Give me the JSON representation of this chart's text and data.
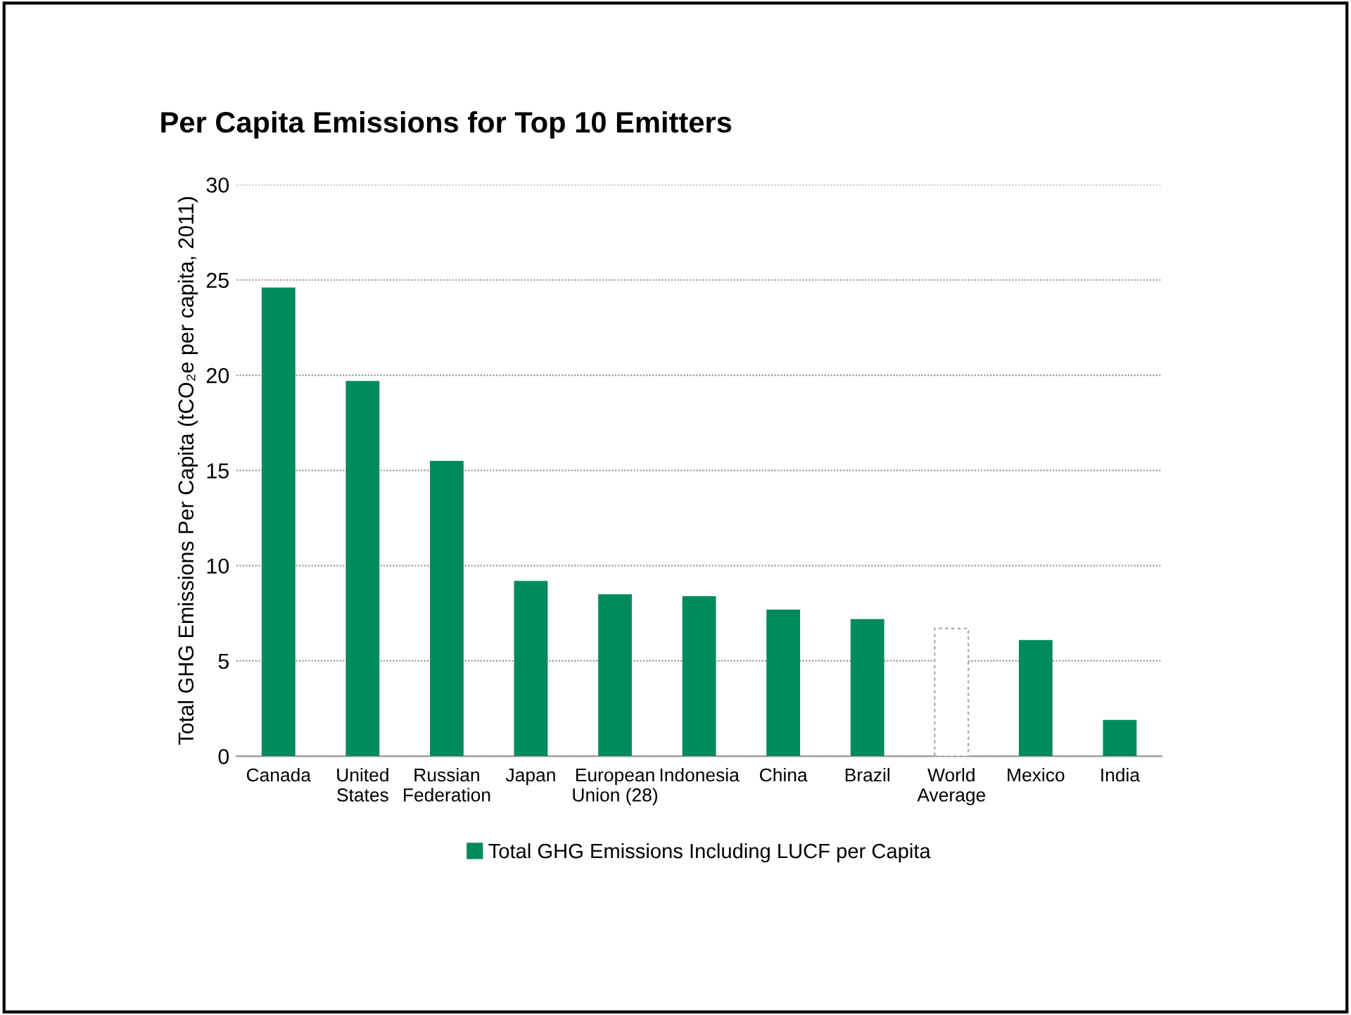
{
  "chart_data": {
    "type": "bar",
    "title": "Per Capita Emissions for Top 10 Emitters",
    "ylabel": "Total GHG Emissions Per Capita (tCO₂e per capita, 2011)",
    "categories": [
      "Canada",
      "United\nStates",
      "Russian\nFederation",
      "Japan",
      "European\nUnion (28)",
      "Indonesia",
      "China",
      "Brazil",
      "World\nAverage",
      "Mexico",
      "India"
    ],
    "series": [
      {
        "name": "Total GHG Emissions Including LUCF per Capita",
        "color": "#008a5e",
        "values": [
          24.6,
          19.7,
          15.5,
          9.2,
          8.5,
          8.4,
          7.7,
          7.2,
          6.7,
          6.1,
          1.9
        ],
        "colors": [
          "#008a5e",
          "#008a5e",
          "#008a5e",
          "#008a5e",
          "#008a5e",
          "#008a5e",
          "#008a5e",
          "#008a5e",
          "#ffffff",
          "#008a5e",
          "#008a5e"
        ]
      }
    ],
    "ylim": [
      0,
      30
    ],
    "yticks": [
      0,
      5,
      10,
      15,
      20,
      25,
      30
    ],
    "grid": "y",
    "legend": "bottom"
  }
}
